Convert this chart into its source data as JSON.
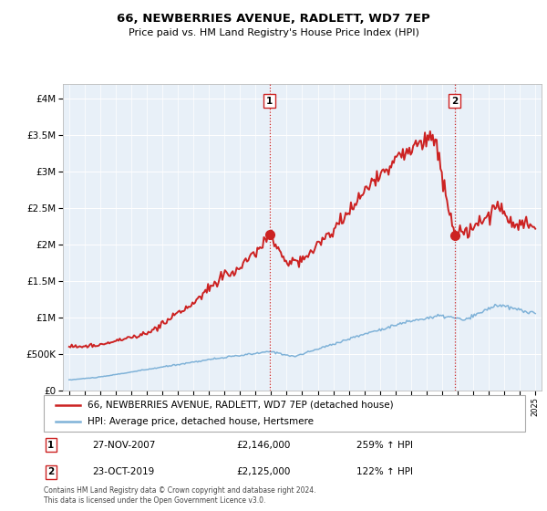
{
  "title": "66, NEWBERRIES AVENUE, RADLETT, WD7 7EP",
  "subtitle": "Price paid vs. HM Land Registry's House Price Index (HPI)",
  "legend_line1": "66, NEWBERRIES AVENUE, RADLETT, WD7 7EP (detached house)",
  "legend_line2": "HPI: Average price, detached house, Hertsmere",
  "marker1_date": "27-NOV-2007",
  "marker1_price": 2146000,
  "marker1_hpi": "259%",
  "marker1_x": 2007.9,
  "marker2_date": "23-OCT-2019",
  "marker2_price": 2125000,
  "marker2_hpi": "122%",
  "marker2_x": 2019.8,
  "hpi_color": "#7fb2d8",
  "price_color": "#cc2222",
  "marker_color": "#cc2222",
  "bg_color": "#e8f0f8",
  "footer": "Contains HM Land Registry data © Crown copyright and database right 2024.\nThis data is licensed under the Open Government Licence v3.0.",
  "ylim": [
    0,
    4200000
  ],
  "yticks": [
    0,
    500000,
    1000000,
    1500000,
    2000000,
    2500000,
    3000000,
    3500000,
    4000000
  ],
  "xlim_start": 1994.6,
  "xlim_end": 2025.4
}
